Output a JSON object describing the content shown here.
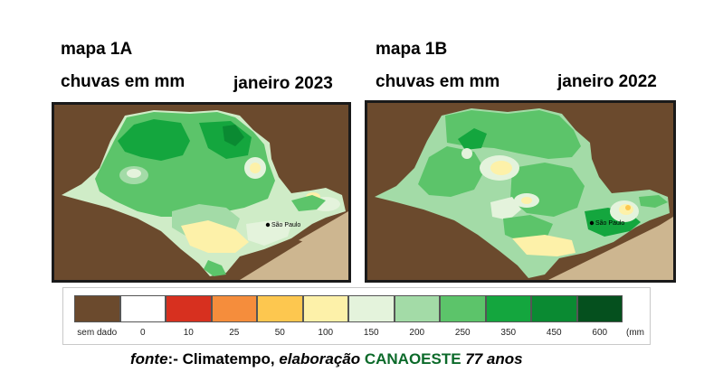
{
  "map_a": {
    "title": "mapa 1A",
    "subtitle": "chuvas em mm",
    "date": "janeiro 2023",
    "city": "São Paulo"
  },
  "map_b": {
    "title": "mapa 1B",
    "subtitle": "chuvas em mm",
    "date": "janeiro 2022",
    "city": "São Paulo"
  },
  "legend": {
    "items": [
      {
        "label": "sem dado",
        "color": "#6b4a2d"
      },
      {
        "label": "0",
        "color": "#ffffff"
      },
      {
        "label": "10",
        "color": "#d7301f"
      },
      {
        "label": "25",
        "color": "#f58d3c"
      },
      {
        "label": "50",
        "color": "#fdc74f"
      },
      {
        "label": "100",
        "color": "#fdf1a9"
      },
      {
        "label": "150",
        "color": "#e4f3dc"
      },
      {
        "label": "200",
        "color": "#a3dba7"
      },
      {
        "label": "250",
        "color": "#5cc46a"
      },
      {
        "label": "350",
        "color": "#14a63e"
      },
      {
        "label": "450",
        "color": "#0a8a32"
      },
      {
        "label": "600",
        "color": "#05501e"
      }
    ],
    "unit": "(mm"
  },
  "source": {
    "prefix": "fonte",
    "middle": ":- Climatempo, ",
    "elab": "elaboração ",
    "brand": "CANAOESTE",
    "suffix": " 77 anos"
  }
}
